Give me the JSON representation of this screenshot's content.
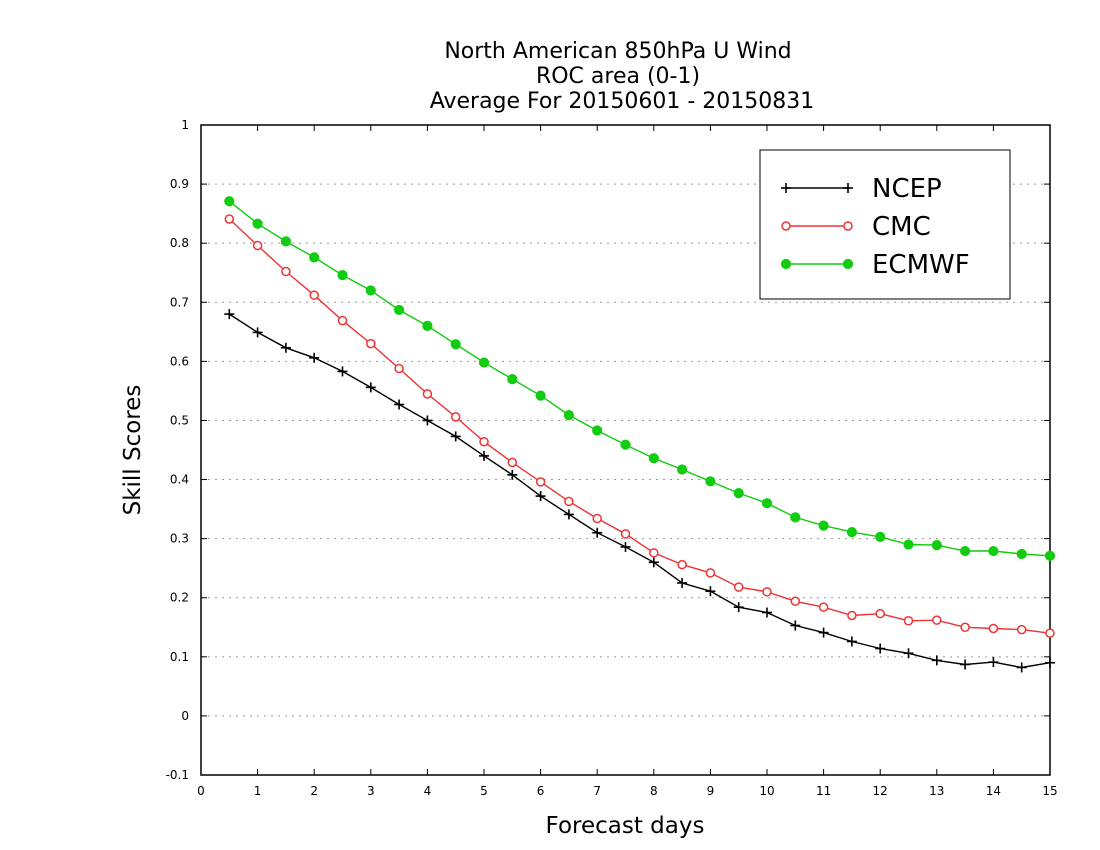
{
  "chart_data": {
    "type": "line",
    "title_lines": [
      "North American 850hPa U Wind",
      "ROC area (0-1)",
      "Average For 20150601 - 20150831"
    ],
    "xlabel": "Forecast days",
    "ylabel": "Skill Scores",
    "xlim": [
      0,
      15
    ],
    "ylim": [
      -0.1,
      1
    ],
    "x_ticks": [
      "0",
      "1",
      "2",
      "3",
      "4",
      "5",
      "6",
      "7",
      "8",
      "9",
      "10",
      "11",
      "12",
      "13",
      "14",
      "15"
    ],
    "y_ticks": [
      "-0.1",
      "0",
      "0.1",
      "0.2",
      "0.3",
      "0.4",
      "0.5",
      "0.6",
      "0.7",
      "0.8",
      "0.9",
      "1"
    ],
    "grid": "horizontal dotted",
    "legend_position": "top-right",
    "x": [
      0.5,
      1,
      1.5,
      2,
      2.5,
      3,
      3.5,
      4,
      4.5,
      5,
      5.5,
      6,
      6.5,
      7,
      7.5,
      8,
      8.5,
      9,
      9.5,
      10,
      10.5,
      11,
      11.5,
      12,
      12.5,
      13,
      13.5,
      14,
      14.5,
      15
    ],
    "series": [
      {
        "name": "NCEP",
        "color": "#000000",
        "marker": "plus",
        "values": [
          0.68,
          0.649,
          0.623,
          0.606,
          0.583,
          0.556,
          0.527,
          0.5,
          0.473,
          0.44,
          0.408,
          0.372,
          0.341,
          0.31,
          0.286,
          0.26,
          0.225,
          0.211,
          0.184,
          0.175,
          0.153,
          0.141,
          0.126,
          0.114,
          0.106,
          0.094,
          0.087,
          0.091,
          0.082,
          0.09
        ]
      },
      {
        "name": "CMC",
        "color": "#ee3333",
        "marker": "open-circle",
        "values": [
          0.841,
          0.796,
          0.752,
          0.712,
          0.669,
          0.63,
          0.588,
          0.545,
          0.506,
          0.464,
          0.429,
          0.396,
          0.363,
          0.334,
          0.308,
          0.276,
          0.256,
          0.242,
          0.218,
          0.21,
          0.194,
          0.184,
          0.17,
          0.173,
          0.161,
          0.162,
          0.15,
          0.148,
          0.146,
          0.14
        ]
      },
      {
        "name": "ECMWF",
        "color": "#11cc11",
        "marker": "filled-circle",
        "values": [
          0.871,
          0.833,
          0.803,
          0.776,
          0.746,
          0.72,
          0.687,
          0.66,
          0.629,
          0.598,
          0.57,
          0.542,
          0.509,
          0.483,
          0.459,
          0.436,
          0.417,
          0.397,
          0.377,
          0.36,
          0.336,
          0.322,
          0.311,
          0.303,
          0.29,
          0.289,
          0.279,
          0.279,
          0.274,
          0.271
        ]
      }
    ]
  }
}
